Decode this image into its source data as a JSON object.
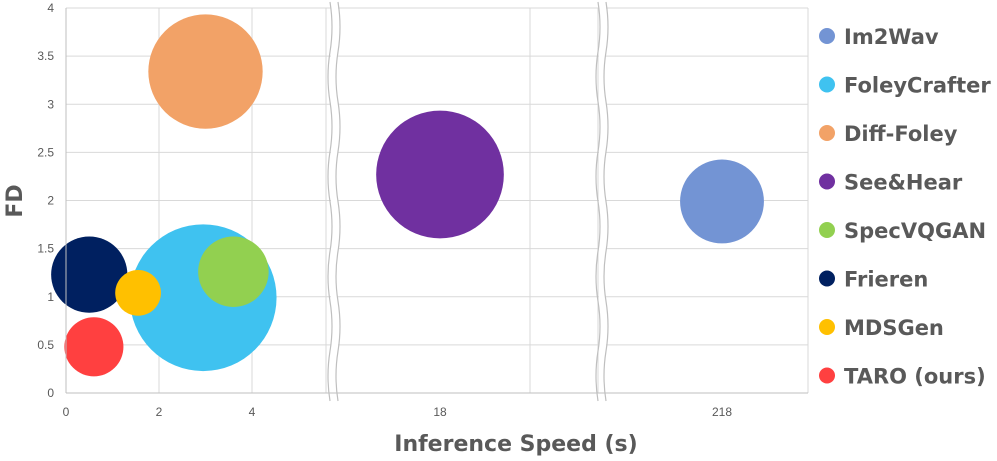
{
  "chart_data": {
    "type": "scatter",
    "title": "",
    "xlabel": "Inference Speed (s)",
    "ylabel": "FD",
    "ylim": [
      0,
      4
    ],
    "yticks": [
      "0",
      "0.5",
      "1",
      "1.5",
      "2",
      "2.5",
      "3",
      "3.5",
      "4"
    ],
    "x_axis_segments": [
      {
        "range": [
          0,
          5.6
        ],
        "ticks": [
          "0",
          "2",
          "4"
        ]
      },
      {
        "range": [
          14.3,
          21.6
        ],
        "ticks": [
          "18"
        ]
      },
      {
        "range": [
          211,
          228
        ],
        "ticks": [
          "218"
        ]
      }
    ],
    "axis_breaks": true,
    "grid": true,
    "legend_position": "right",
    "series": [
      {
        "name": "Im2Wav",
        "x": 218,
        "y": 1.99,
        "size": 0.44,
        "color": "#7394D4"
      },
      {
        "name": "FoleyCrafter",
        "x": 2.95,
        "y": 0.99,
        "size": 0.77,
        "color": "#3FC2F0"
      },
      {
        "name": "Diff-Foley",
        "x": 3.0,
        "y": 3.34,
        "size": 0.6,
        "color": "#F2A267"
      },
      {
        "name": "See&Hear",
        "x": 18.0,
        "y": 2.27,
        "size": 0.67,
        "color": "#7030A0"
      },
      {
        "name": "SpecVQGAN",
        "x": 3.6,
        "y": 1.26,
        "size": 0.37,
        "color": "#92D050"
      },
      {
        "name": "Frieren",
        "x": 0.5,
        "y": 1.23,
        "size": 0.4,
        "color": "#002060"
      },
      {
        "name": "MDSGen",
        "x": 1.55,
        "y": 1.04,
        "size": 0.24,
        "color": "#FFC000"
      },
      {
        "name": "TARO (ours)",
        "x": 0.6,
        "y": 0.48,
        "size": 0.31,
        "color": "#FF4040"
      }
    ]
  }
}
